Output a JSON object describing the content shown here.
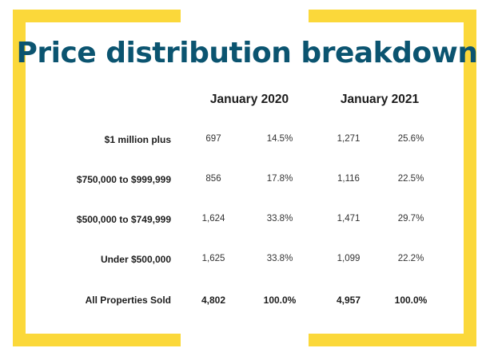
{
  "chart_data": {
    "type": "table",
    "title": "Price distribution breakdown",
    "column_groups": [
      "January 2020",
      "January 2021"
    ],
    "rows": [
      {
        "label": "$1 million plus",
        "jan2020_count": "697",
        "jan2020_pct": "14.5%",
        "jan2021_count": "1,271",
        "jan2021_pct": "25.6%"
      },
      {
        "label": "$750,000 to $999,999",
        "jan2020_count": "856",
        "jan2020_pct": "17.8%",
        "jan2021_count": "1,116",
        "jan2021_pct": "22.5%"
      },
      {
        "label": "$500,000 to $749,999",
        "jan2020_count": "1,624",
        "jan2020_pct": "33.8%",
        "jan2021_count": "1,471",
        "jan2021_pct": "29.7%"
      },
      {
        "label": "Under $500,000",
        "jan2020_count": "1,625",
        "jan2020_pct": "33.8%",
        "jan2021_count": "1,099",
        "jan2021_pct": "22.2%"
      },
      {
        "label": "All Properties Sold",
        "jan2020_count": "4,802",
        "jan2020_pct": "100.0%",
        "jan2021_count": "4,957",
        "jan2021_pct": "100.0%"
      }
    ],
    "values": {
      "jan2020_count": [
        697,
        856,
        1624,
        1625,
        4802
      ],
      "jan2020_pct": [
        14.5,
        17.8,
        33.8,
        33.8,
        100.0
      ],
      "jan2021_count": [
        1271,
        1116,
        1471,
        1099,
        4957
      ],
      "jan2021_pct": [
        25.6,
        22.5,
        29.7,
        22.2,
        100.0
      ]
    }
  },
  "colors": {
    "title": "#0b5470",
    "frame": "#fbd83a",
    "text": "#1d1d1d"
  }
}
